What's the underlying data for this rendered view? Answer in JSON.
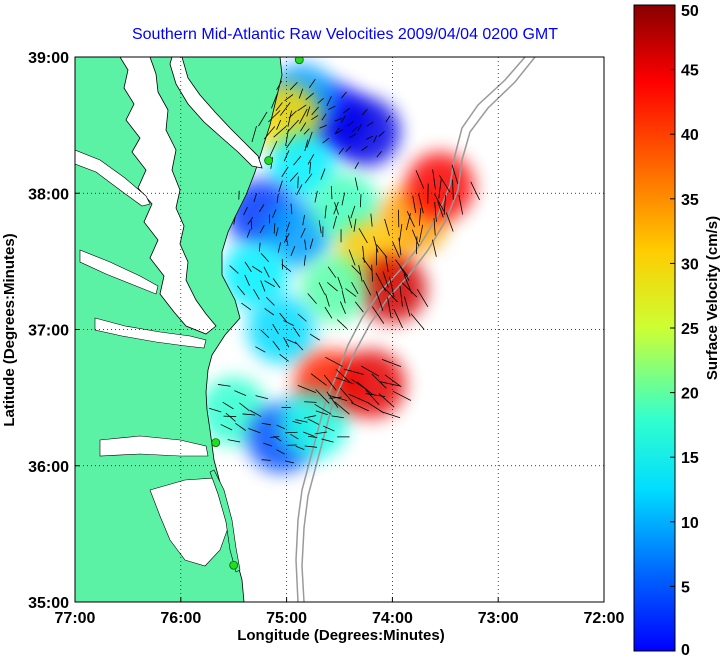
{
  "title": "Southern Mid-Atlantic Raw Velocities 2009/04/04 0200 GMT",
  "x_axis": {
    "label": "Longitude (Degrees:Minutes)",
    "range": [
      -77,
      -72
    ],
    "ticks": [
      {
        "value": -77,
        "label": "77:00"
      },
      {
        "value": -76,
        "label": "76:00"
      },
      {
        "value": -75,
        "label": "75:00"
      },
      {
        "value": -74,
        "label": "74:00"
      },
      {
        "value": -73,
        "label": "73:00"
      },
      {
        "value": -72,
        "label": "72:00"
      }
    ]
  },
  "y_axis": {
    "label": "Latitude (Degrees:Minutes)",
    "range": [
      35,
      39
    ],
    "ticks": [
      {
        "value": 35,
        "label": "35:00"
      },
      {
        "value": 36,
        "label": "36:00"
      },
      {
        "value": 37,
        "label": "37:00"
      },
      {
        "value": 38,
        "label": "38:00"
      },
      {
        "value": 39,
        "label": "39:00"
      }
    ]
  },
  "grid": "dotted",
  "colorbar": {
    "label": "Surface Velocity (cm/s)",
    "range": [
      0,
      50
    ],
    "placement": "right",
    "colormap": "jet",
    "ticks": [
      {
        "value": 0,
        "label": "0"
      },
      {
        "value": 5,
        "label": "5"
      },
      {
        "value": 10,
        "label": "10"
      },
      {
        "value": 15,
        "label": "15"
      },
      {
        "value": 20,
        "label": "20"
      },
      {
        "value": 25,
        "label": "25"
      },
      {
        "value": 30,
        "label": "30"
      },
      {
        "value": 35,
        "label": "35"
      },
      {
        "value": 40,
        "label": "40"
      },
      {
        "value": 45,
        "label": "45"
      },
      {
        "value": 50,
        "label": "50"
      }
    ]
  },
  "colors": {
    "land": "#5cf2a6",
    "water": "#ffffff",
    "title": "#0000ff",
    "bathymetry": "#9a9a9a",
    "vectors": "#000000",
    "stations": "#22dd22"
  },
  "chart_data": {
    "type": "heatmap",
    "description_units": "surface current speed in cm/s, lon/lat in degrees",
    "stations": [
      {
        "lon": -74.88,
        "lat": 38.98
      },
      {
        "lon": -75.17,
        "lat": 38.24
      },
      {
        "lon": -75.67,
        "lat": 36.17
      },
      {
        "lon": -75.5,
        "lat": 35.27
      }
    ],
    "velocity_field_patches": [
      {
        "lon": -74.55,
        "lat": 38.55,
        "speed": 6
      },
      {
        "lon": -74.25,
        "lat": 38.45,
        "speed": 5
      },
      {
        "lon": -74.85,
        "lat": 38.7,
        "speed": 14
      },
      {
        "lon": -75.0,
        "lat": 38.55,
        "speed": 33
      },
      {
        "lon": -74.85,
        "lat": 38.2,
        "speed": 18
      },
      {
        "lon": -75.25,
        "lat": 37.85,
        "speed": 9
      },
      {
        "lon": -74.9,
        "lat": 37.7,
        "speed": 14
      },
      {
        "lon": -74.45,
        "lat": 37.9,
        "speed": 22
      },
      {
        "lon": -73.8,
        "lat": 37.8,
        "speed": 36
      },
      {
        "lon": -73.55,
        "lat": 38.05,
        "speed": 44
      },
      {
        "lon": -74.2,
        "lat": 37.55,
        "speed": 34
      },
      {
        "lon": -74.0,
        "lat": 37.3,
        "speed": 46
      },
      {
        "lon": -74.55,
        "lat": 37.3,
        "speed": 23
      },
      {
        "lon": -75.3,
        "lat": 37.4,
        "speed": 18
      },
      {
        "lon": -75.05,
        "lat": 37.0,
        "speed": 17
      },
      {
        "lon": -74.6,
        "lat": 36.6,
        "speed": 42
      },
      {
        "lon": -74.2,
        "lat": 36.6,
        "speed": 45
      },
      {
        "lon": -75.5,
        "lat": 36.4,
        "speed": 21
      },
      {
        "lon": -75.05,
        "lat": 36.2,
        "speed": 10
      },
      {
        "lon": -74.75,
        "lat": 36.3,
        "speed": 20
      }
    ]
  }
}
